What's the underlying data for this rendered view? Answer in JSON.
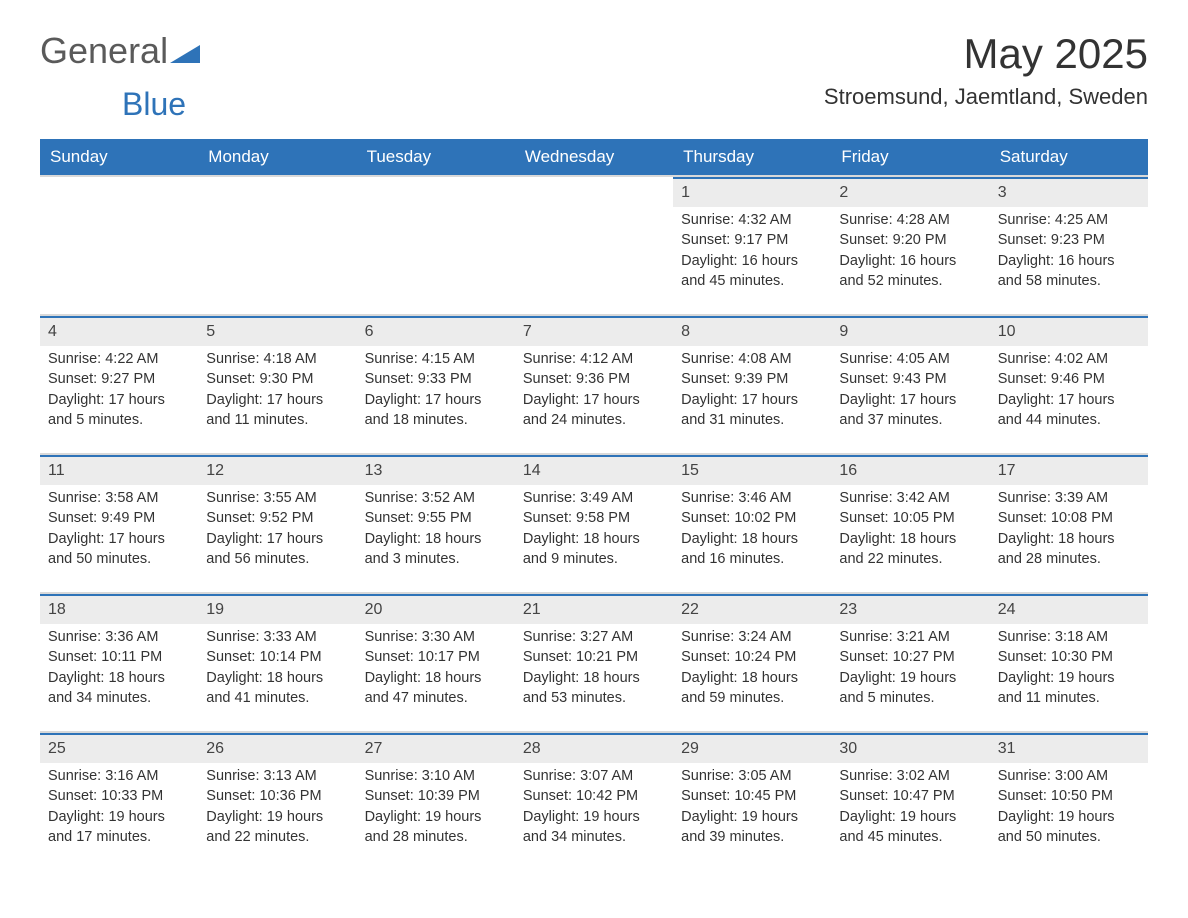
{
  "logo": {
    "general": "General",
    "blue": "Blue"
  },
  "title": "May 2025",
  "subtitle": "Stroemsund, Jaemtland, Sweden",
  "colors": {
    "header_bg": "#2e73b8",
    "header_text": "#ffffff",
    "date_bar_bg": "#ececec",
    "date_bar_accent": "#2e73b8",
    "text": "#333333",
    "logo_general": "#5a5a5a",
    "logo_blue": "#2e73b8"
  },
  "day_headers": [
    "Sunday",
    "Monday",
    "Tuesday",
    "Wednesday",
    "Thursday",
    "Friday",
    "Saturday"
  ],
  "weeks": [
    [
      null,
      null,
      null,
      null,
      {
        "date": "1",
        "sunrise": "Sunrise: 4:32 AM",
        "sunset": "Sunset: 9:17 PM",
        "day1": "Daylight: 16 hours",
        "day2": "and 45 minutes."
      },
      {
        "date": "2",
        "sunrise": "Sunrise: 4:28 AM",
        "sunset": "Sunset: 9:20 PM",
        "day1": "Daylight: 16 hours",
        "day2": "and 52 minutes."
      },
      {
        "date": "3",
        "sunrise": "Sunrise: 4:25 AM",
        "sunset": "Sunset: 9:23 PM",
        "day1": "Daylight: 16 hours",
        "day2": "and 58 minutes."
      }
    ],
    [
      {
        "date": "4",
        "sunrise": "Sunrise: 4:22 AM",
        "sunset": "Sunset: 9:27 PM",
        "day1": "Daylight: 17 hours",
        "day2": "and 5 minutes."
      },
      {
        "date": "5",
        "sunrise": "Sunrise: 4:18 AM",
        "sunset": "Sunset: 9:30 PM",
        "day1": "Daylight: 17 hours",
        "day2": "and 11 minutes."
      },
      {
        "date": "6",
        "sunrise": "Sunrise: 4:15 AM",
        "sunset": "Sunset: 9:33 PM",
        "day1": "Daylight: 17 hours",
        "day2": "and 18 minutes."
      },
      {
        "date": "7",
        "sunrise": "Sunrise: 4:12 AM",
        "sunset": "Sunset: 9:36 PM",
        "day1": "Daylight: 17 hours",
        "day2": "and 24 minutes."
      },
      {
        "date": "8",
        "sunrise": "Sunrise: 4:08 AM",
        "sunset": "Sunset: 9:39 PM",
        "day1": "Daylight: 17 hours",
        "day2": "and 31 minutes."
      },
      {
        "date": "9",
        "sunrise": "Sunrise: 4:05 AM",
        "sunset": "Sunset: 9:43 PM",
        "day1": "Daylight: 17 hours",
        "day2": "and 37 minutes."
      },
      {
        "date": "10",
        "sunrise": "Sunrise: 4:02 AM",
        "sunset": "Sunset: 9:46 PM",
        "day1": "Daylight: 17 hours",
        "day2": "and 44 minutes."
      }
    ],
    [
      {
        "date": "11",
        "sunrise": "Sunrise: 3:58 AM",
        "sunset": "Sunset: 9:49 PM",
        "day1": "Daylight: 17 hours",
        "day2": "and 50 minutes."
      },
      {
        "date": "12",
        "sunrise": "Sunrise: 3:55 AM",
        "sunset": "Sunset: 9:52 PM",
        "day1": "Daylight: 17 hours",
        "day2": "and 56 minutes."
      },
      {
        "date": "13",
        "sunrise": "Sunrise: 3:52 AM",
        "sunset": "Sunset: 9:55 PM",
        "day1": "Daylight: 18 hours",
        "day2": "and 3 minutes."
      },
      {
        "date": "14",
        "sunrise": "Sunrise: 3:49 AM",
        "sunset": "Sunset: 9:58 PM",
        "day1": "Daylight: 18 hours",
        "day2": "and 9 minutes."
      },
      {
        "date": "15",
        "sunrise": "Sunrise: 3:46 AM",
        "sunset": "Sunset: 10:02 PM",
        "day1": "Daylight: 18 hours",
        "day2": "and 16 minutes."
      },
      {
        "date": "16",
        "sunrise": "Sunrise: 3:42 AM",
        "sunset": "Sunset: 10:05 PM",
        "day1": "Daylight: 18 hours",
        "day2": "and 22 minutes."
      },
      {
        "date": "17",
        "sunrise": "Sunrise: 3:39 AM",
        "sunset": "Sunset: 10:08 PM",
        "day1": "Daylight: 18 hours",
        "day2": "and 28 minutes."
      }
    ],
    [
      {
        "date": "18",
        "sunrise": "Sunrise: 3:36 AM",
        "sunset": "Sunset: 10:11 PM",
        "day1": "Daylight: 18 hours",
        "day2": "and 34 minutes."
      },
      {
        "date": "19",
        "sunrise": "Sunrise: 3:33 AM",
        "sunset": "Sunset: 10:14 PM",
        "day1": "Daylight: 18 hours",
        "day2": "and 41 minutes."
      },
      {
        "date": "20",
        "sunrise": "Sunrise: 3:30 AM",
        "sunset": "Sunset: 10:17 PM",
        "day1": "Daylight: 18 hours",
        "day2": "and 47 minutes."
      },
      {
        "date": "21",
        "sunrise": "Sunrise: 3:27 AM",
        "sunset": "Sunset: 10:21 PM",
        "day1": "Daylight: 18 hours",
        "day2": "and 53 minutes."
      },
      {
        "date": "22",
        "sunrise": "Sunrise: 3:24 AM",
        "sunset": "Sunset: 10:24 PM",
        "day1": "Daylight: 18 hours",
        "day2": "and 59 minutes."
      },
      {
        "date": "23",
        "sunrise": "Sunrise: 3:21 AM",
        "sunset": "Sunset: 10:27 PM",
        "day1": "Daylight: 19 hours",
        "day2": "and 5 minutes."
      },
      {
        "date": "24",
        "sunrise": "Sunrise: 3:18 AM",
        "sunset": "Sunset: 10:30 PM",
        "day1": "Daylight: 19 hours",
        "day2": "and 11 minutes."
      }
    ],
    [
      {
        "date": "25",
        "sunrise": "Sunrise: 3:16 AM",
        "sunset": "Sunset: 10:33 PM",
        "day1": "Daylight: 19 hours",
        "day2": "and 17 minutes."
      },
      {
        "date": "26",
        "sunrise": "Sunrise: 3:13 AM",
        "sunset": "Sunset: 10:36 PM",
        "day1": "Daylight: 19 hours",
        "day2": "and 22 minutes."
      },
      {
        "date": "27",
        "sunrise": "Sunrise: 3:10 AM",
        "sunset": "Sunset: 10:39 PM",
        "day1": "Daylight: 19 hours",
        "day2": "and 28 minutes."
      },
      {
        "date": "28",
        "sunrise": "Sunrise: 3:07 AM",
        "sunset": "Sunset: 10:42 PM",
        "day1": "Daylight: 19 hours",
        "day2": "and 34 minutes."
      },
      {
        "date": "29",
        "sunrise": "Sunrise: 3:05 AM",
        "sunset": "Sunset: 10:45 PM",
        "day1": "Daylight: 19 hours",
        "day2": "and 39 minutes."
      },
      {
        "date": "30",
        "sunrise": "Sunrise: 3:02 AM",
        "sunset": "Sunset: 10:47 PM",
        "day1": "Daylight: 19 hours",
        "day2": "and 45 minutes."
      },
      {
        "date": "31",
        "sunrise": "Sunrise: 3:00 AM",
        "sunset": "Sunset: 10:50 PM",
        "day1": "Daylight: 19 hours",
        "day2": "and 50 minutes."
      }
    ]
  ]
}
